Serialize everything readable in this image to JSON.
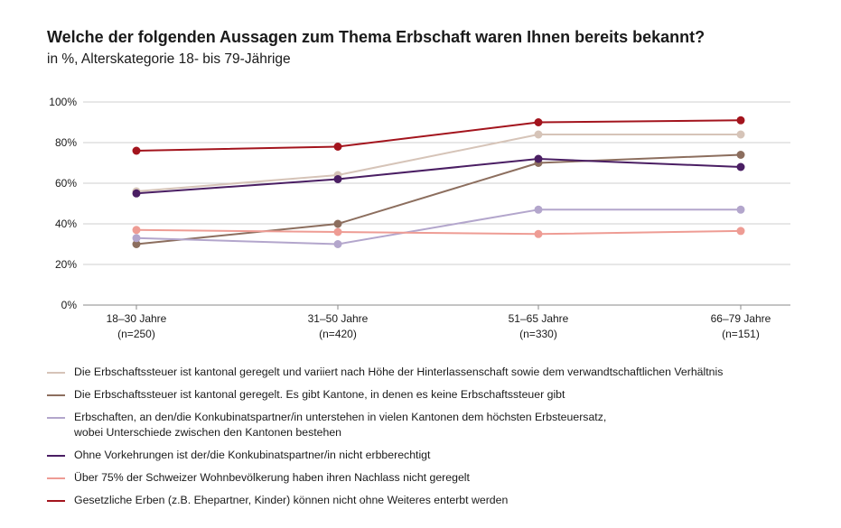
{
  "title": "Welche der folgenden Aussagen zum Thema Erbschaft waren Ihnen bereits bekannt?",
  "subtitle": "in %, Alterskategorie 18- bis 79-Jährige",
  "chart_data": {
    "type": "line",
    "title": "Welche der folgenden Aussagen zum Thema Erbschaft waren Ihnen bereits bekannt?",
    "subtitle": "in %, Alterskategorie 18- bis 79-Jährige",
    "categories": [
      "18–30 Jahre\n(n=250)",
      "31–50 Jahre\n(n=420)",
      "51–65 Jahre\n(n=330)",
      "66–79 Jahre\n(n=151)"
    ],
    "ylim": [
      0,
      100
    ],
    "yticks": [
      0,
      20,
      40,
      60,
      80,
      100
    ],
    "ytick_labels": [
      "0%",
      "20%",
      "40%",
      "60%",
      "80%",
      "100%"
    ],
    "grid": true,
    "legend_position": "bottom",
    "series": [
      {
        "name": "Die Erbschaftssteuer ist kantonal geregelt und variiert nach Höhe der Hinterlassenschaft sowie dem verwandtschaftlichen Verhältnis",
        "color": "#d6c4b8",
        "values": [
          56,
          64,
          84,
          84
        ]
      },
      {
        "name": "Die Erbschaftssteuer ist kantonal geregelt. Es gibt Kantone, in denen es keine Erbschaftssteuer gibt",
        "color": "#8c6e5e",
        "values": [
          30,
          40,
          70,
          74
        ]
      },
      {
        "name": "Erbschaften, an den/die Konkubinatspartner/in unterstehen in vielen Kantonen dem höchsten Erbsteuersatz,\nwobei Unterschiede zwischen den Kantonen bestehen",
        "color": "#b3a6cc",
        "values": [
          33,
          30,
          47,
          47
        ]
      },
      {
        "name": "Ohne Vorkehrungen ist der/die Konkubinatspartner/in nicht erbberechtigt",
        "color": "#4a1e63",
        "values": [
          55,
          62,
          72,
          68
        ]
      },
      {
        "name": "Über 75% der Schweizer Wohnbevölkerung haben ihren Nachlass nicht geregelt",
        "color": "#ee9c94",
        "values": [
          37,
          36,
          35,
          36.5
        ]
      },
      {
        "name": "Gesetzliche Erben (z.B. Ehepartner, Kinder) können nicht ohne Weiteres enterbt werden",
        "color": "#a3141d",
        "values": [
          76,
          78,
          90,
          91
        ]
      }
    ]
  }
}
